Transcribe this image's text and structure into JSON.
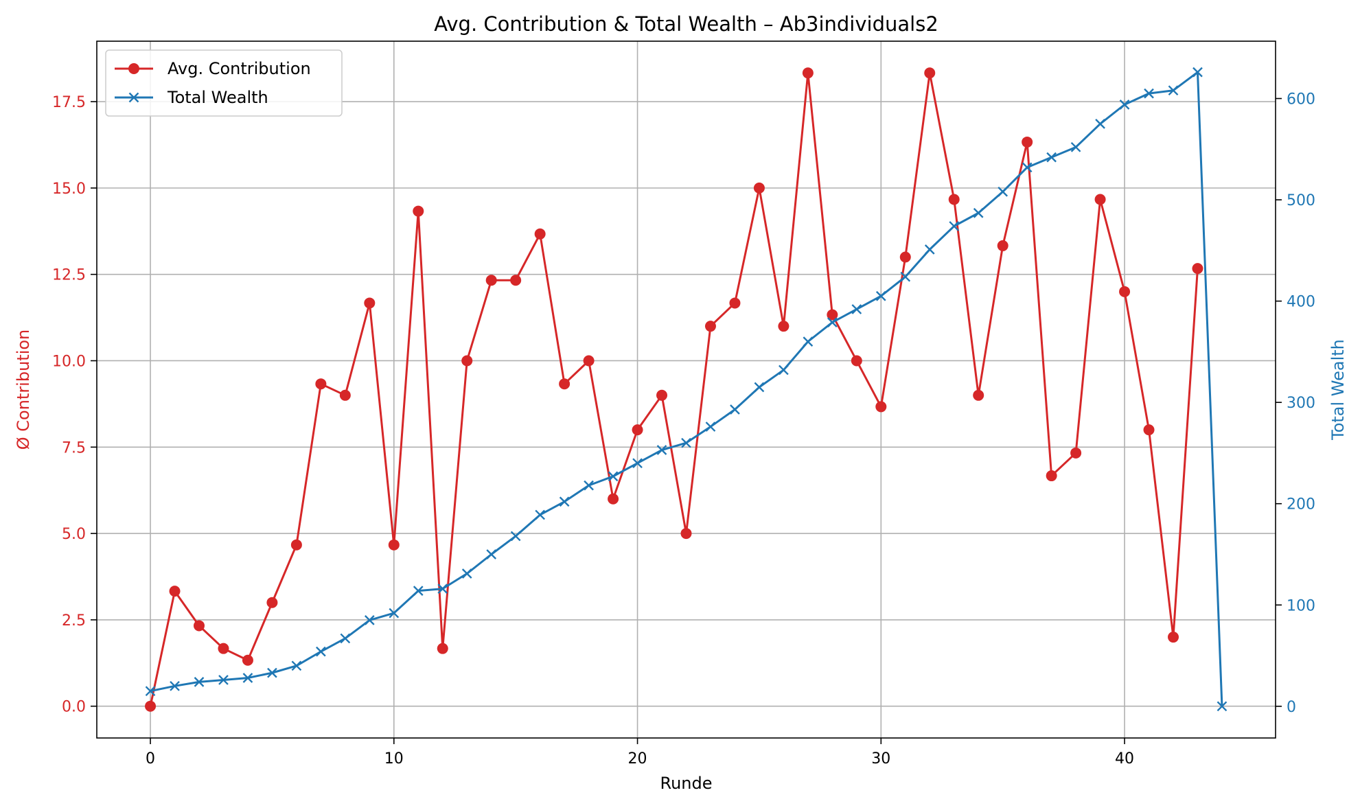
{
  "chart_data": {
    "type": "line",
    "title": "Avg. Contribution & Total Wealth – Ab3individuals2",
    "xlabel": "Runde",
    "ylabel_left": "Ø Contribution",
    "ylabel_right": "Total Wealth",
    "xlim": [
      -2.2,
      46.2
    ],
    "ylim_left": [
      -0.92,
      19.25
    ],
    "ylim_right": [
      -31.3,
      656.6
    ],
    "x_ticks": [
      "0",
      "10",
      "20",
      "30",
      "40"
    ],
    "y_left_ticks": [
      "0.0",
      "2.5",
      "5.0",
      "7.5",
      "10.0",
      "12.5",
      "15.0",
      "17.5"
    ],
    "y_right_ticks": [
      "0",
      "100",
      "200",
      "300",
      "400",
      "500",
      "600"
    ],
    "grid": true,
    "legend_position": "top-left",
    "colors": {
      "contribution": "#d62728",
      "wealth": "#1f77b4"
    },
    "series": [
      {
        "name": "Avg. Contribution",
        "axis": "left",
        "marker": "circle",
        "x": [
          0,
          1,
          2,
          3,
          4,
          5,
          6,
          7,
          8,
          9,
          10,
          11,
          12,
          13,
          14,
          15,
          16,
          17,
          18,
          19,
          20,
          21,
          22,
          23,
          24,
          25,
          26,
          27,
          28,
          29,
          30,
          31,
          32,
          33,
          34,
          35,
          36,
          37,
          38,
          39,
          40,
          41,
          42,
          43
        ],
        "values": [
          0,
          3.33,
          2.33,
          1.67,
          1.33,
          3,
          4.67,
          9.33,
          9,
          11.67,
          4.67,
          14.33,
          1.67,
          10,
          12.33,
          12.33,
          13.67,
          9.33,
          10,
          6,
          8,
          9,
          5,
          11,
          11.67,
          15,
          11,
          18.33,
          11.33,
          10,
          8.67,
          13,
          18.33,
          14.67,
          9,
          13.33,
          16.33,
          6.67,
          7.33,
          14.67,
          12,
          8,
          2,
          12.67
        ]
      },
      {
        "name": "Total Wealth",
        "axis": "right",
        "marker": "x",
        "x": [
          0,
          1,
          2,
          3,
          4,
          5,
          6,
          7,
          8,
          9,
          10,
          11,
          12,
          13,
          14,
          15,
          16,
          17,
          18,
          19,
          20,
          21,
          22,
          23,
          24,
          25,
          26,
          27,
          28,
          29,
          30,
          31,
          32,
          33,
          34,
          35,
          36,
          37,
          38,
          39,
          40,
          41,
          42,
          43,
          44
        ],
        "values": [
          15,
          20,
          24,
          26,
          28,
          33,
          40,
          54,
          67,
          85,
          92,
          114,
          116,
          131,
          150,
          168,
          189,
          202,
          218,
          227,
          240,
          253,
          260,
          276,
          293,
          315,
          332,
          360,
          379,
          392,
          405,
          424,
          451,
          474,
          487,
          508,
          532,
          542,
          552,
          575,
          594,
          605,
          608,
          626,
          0
        ]
      }
    ]
  }
}
